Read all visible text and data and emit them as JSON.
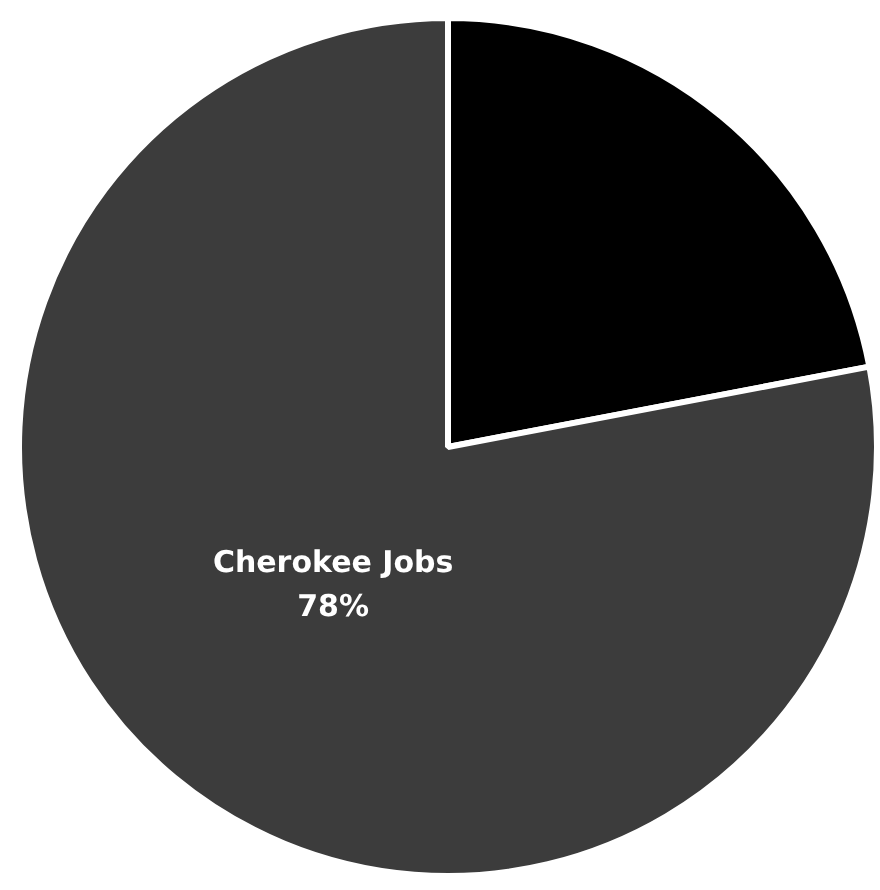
{
  "chart_data": {
    "type": "pie",
    "categories": [
      null,
      "Cherokee Jobs"
    ],
    "values": [
      22,
      78
    ],
    "colors": [
      "#000000",
      "#3c3c3c"
    ],
    "value_labels": [
      null,
      "78%"
    ],
    "legend": false
  }
}
